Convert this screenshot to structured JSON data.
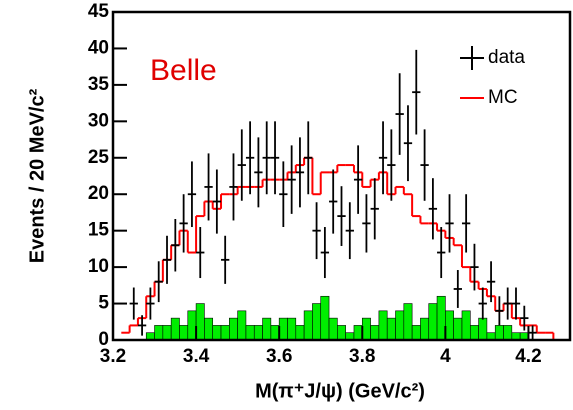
{
  "chart_data": {
    "type": "histogram",
    "annotation": "Belle",
    "xlabel": "M(π⁺J/ψ) (GeV/c²)",
    "ylabel": "Events / 20 MeV/c²",
    "bins": [
      3.22,
      3.24,
      3.26,
      3.28,
      3.3,
      3.32,
      3.34,
      3.36,
      3.38,
      3.4,
      3.42,
      3.44,
      3.46,
      3.48,
      3.5,
      3.52,
      3.54,
      3.56,
      3.58,
      3.6,
      3.62,
      3.64,
      3.66,
      3.68,
      3.7,
      3.72,
      3.74,
      3.76,
      3.78,
      3.8,
      3.82,
      3.84,
      3.86,
      3.88,
      3.9,
      3.92,
      3.94,
      3.96,
      3.98,
      4.0,
      4.02,
      4.04,
      4.06,
      4.08,
      4.1,
      4.12,
      4.14,
      4.16,
      4.18,
      4.2,
      4.22,
      4.24,
      4.26,
      4.28
    ],
    "series": [
      {
        "name": "data",
        "color": "#000000",
        "style": "points",
        "values": [
          null,
          5,
          2,
          5,
          8,
          11,
          13,
          16,
          20,
          12,
          21,
          19,
          11,
          21,
          24,
          25,
          23,
          25,
          25,
          20,
          22,
          23,
          25,
          15,
          12,
          19,
          17,
          15,
          22,
          16,
          18,
          25,
          24,
          31,
          27,
          34,
          24,
          18,
          12,
          16,
          7,
          16,
          10,
          5,
          8,
          4,
          5,
          5,
          3,
          1,
          null,
          null,
          null
        ],
        "errors": [
          null,
          2.2,
          1.4,
          2.2,
          2.8,
          3.3,
          3.6,
          4,
          4.5,
          3.5,
          4.6,
          4.4,
          3.3,
          4.6,
          4.9,
          5,
          4.8,
          5,
          5,
          4.5,
          4.7,
          4.8,
          5,
          3.9,
          3.5,
          4.4,
          4.1,
          3.9,
          4.7,
          4,
          4.2,
          5,
          4.9,
          5.6,
          5.2,
          5.8,
          4.9,
          4.2,
          3.5,
          4,
          2.6,
          4,
          3.2,
          2.2,
          2.8,
          2,
          2.2,
          2.2,
          1.7,
          1,
          null,
          null,
          null
        ]
      },
      {
        "name": "MC",
        "color": "#ff0000",
        "style": "step",
        "values": [
          1,
          2,
          3,
          6,
          8,
          11,
          13,
          15,
          12,
          17,
          19,
          18,
          20,
          20,
          21,
          21,
          21,
          22,
          22,
          22,
          23,
          24,
          25,
          20,
          23,
          23,
          24,
          24,
          23,
          21,
          22,
          23,
          20,
          21,
          20,
          17,
          16,
          16,
          15,
          14,
          13,
          10,
          8,
          7,
          6,
          4,
          5,
          3,
          2,
          2,
          1,
          1,
          0
        ]
      },
      {
        "color": "#00ee00",
        "style": "filled",
        "values": [
          0,
          0,
          0,
          1,
          2,
          2,
          3,
          2,
          4,
          5,
          3,
          2,
          2,
          3,
          4,
          2,
          2,
          3,
          2,
          3,
          3,
          2,
          4,
          5,
          6,
          3,
          2,
          1,
          2,
          3,
          2,
          4,
          3,
          4,
          5,
          2,
          3,
          5,
          6,
          4,
          3,
          4,
          2,
          3,
          1,
          2,
          2,
          1,
          1,
          0,
          0,
          0,
          0
        ]
      }
    ],
    "xlim": [
      3.2,
      4.3
    ],
    "ylim": [
      0,
      45
    ],
    "xticks": [
      3.2,
      3.4,
      3.6,
      3.8,
      4,
      4.2
    ],
    "yticks": [
      0,
      5,
      10,
      15,
      20,
      25,
      30,
      35,
      40,
      45
    ]
  }
}
